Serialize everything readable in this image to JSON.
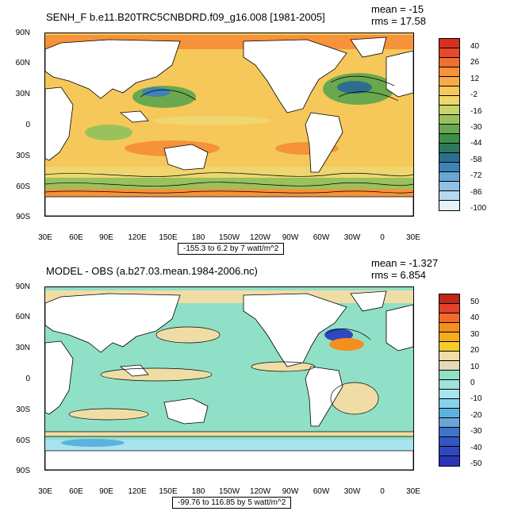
{
  "top": {
    "title": "SENH_F b.e11.B20TRC5CNBDRD.f09_g16.008 [1981-2005]",
    "mean": "mean = -15",
    "rms": "rms = 17.58",
    "range": "-155.3 to 6.2 by 7 watt/m^2",
    "colorbar": {
      "labels": [
        "40",
        "26",
        "12",
        "-2",
        "-16",
        "-30",
        "-44",
        "-58",
        "-72",
        "-86",
        "-100"
      ],
      "colors": [
        "#d7301f",
        "#e8492a",
        "#f0702f",
        "#f5923a",
        "#f8ac48",
        "#f6c85a",
        "#efd66f",
        "#c8d36b",
        "#99c25d",
        "#6aa84f",
        "#3e8f48",
        "#2c7a5a",
        "#2d6e8f",
        "#3f82b5",
        "#6aa6d6",
        "#8fc1e6",
        "#b6d9f0",
        "#e4f2fa"
      ]
    }
  },
  "bottom": {
    "title": "MODEL - OBS (a.b27.03.mean.1984-2006.nc)",
    "mean": "mean = -1.327",
    "rms": "rms = 6.854",
    "range": "-99.76 to 116.85 by 5 watt/m^2",
    "colorbar": {
      "labels": [
        "50",
        "40",
        "30",
        "20",
        "10",
        "0",
        "-10",
        "-20",
        "-30",
        "-40",
        "-50"
      ],
      "colors": [
        "#c0271d",
        "#e2412a",
        "#f26b2b",
        "#f68d1f",
        "#f8ac1c",
        "#f6cc2a",
        "#f0dda6",
        "#e6d9b8",
        "#8fe0c6",
        "#9fe4da",
        "#a8e3f0",
        "#88d1ea",
        "#5bb2de",
        "#6aa5d6",
        "#3f74c9",
        "#3556c2",
        "#3048bd",
        "#2b35b8"
      ]
    }
  },
  "axes": {
    "lat_labels": [
      "90N",
      "60N",
      "30N",
      "0",
      "30S",
      "60S",
      "90S"
    ],
    "lon_labels": [
      "30E",
      "60E",
      "90E",
      "120E",
      "150E",
      "180",
      "150W",
      "120W",
      "90W",
      "60W",
      "30W",
      "0",
      "30E"
    ]
  }
}
